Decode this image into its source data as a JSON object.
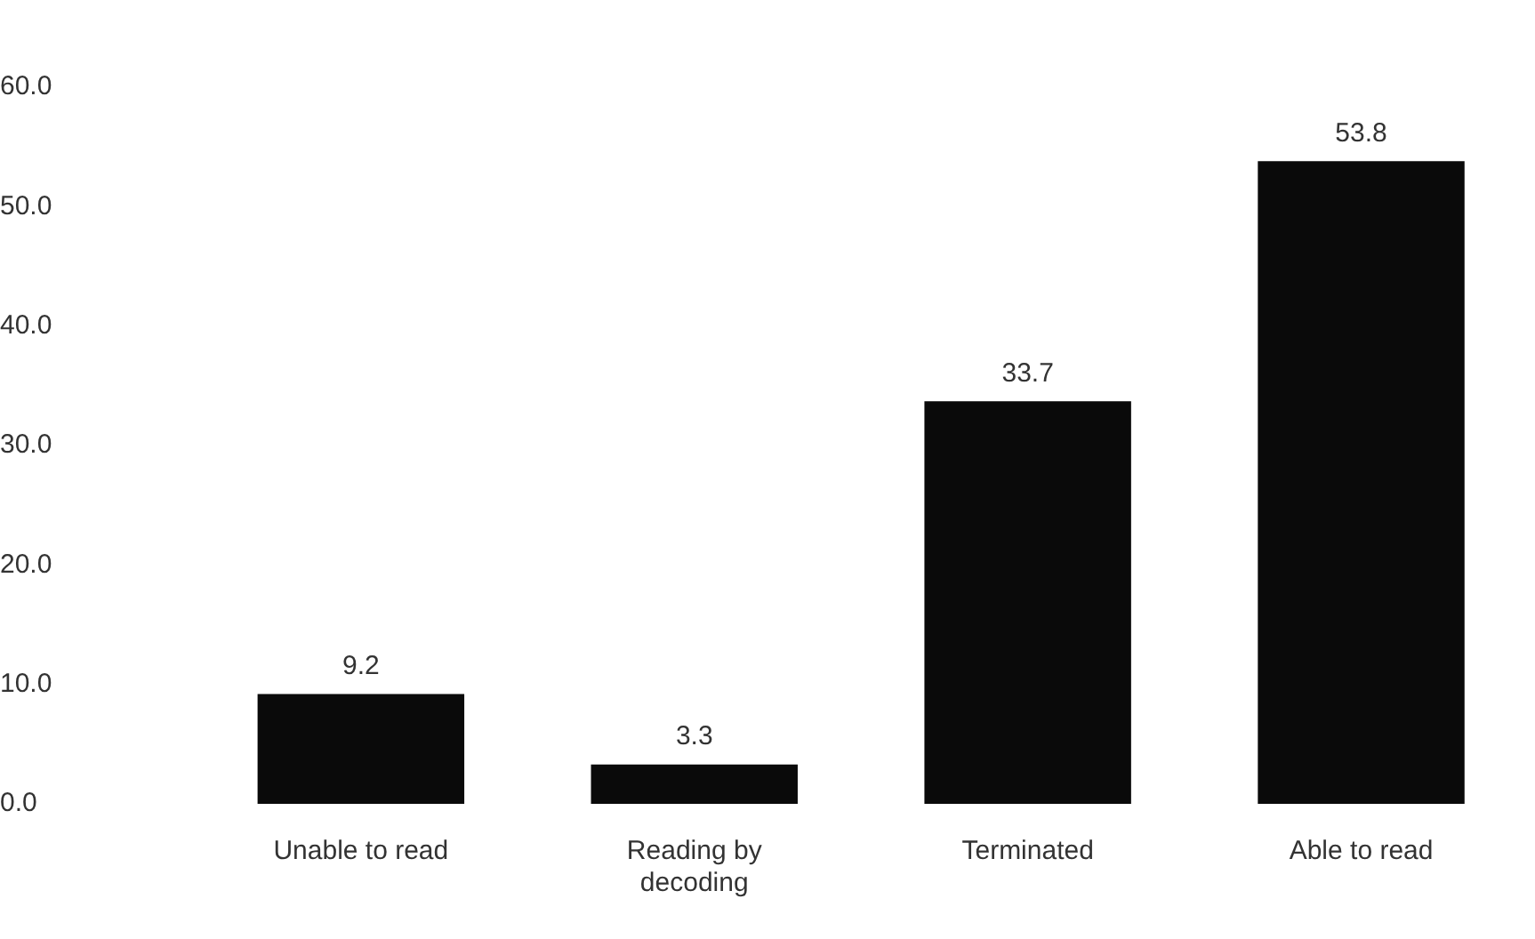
{
  "chart_data": {
    "type": "bar",
    "categories": [
      "Unable to read",
      "Reading by decoding",
      "Terminated",
      "Able to read"
    ],
    "values": [
      9.2,
      3.3,
      33.7,
      53.8
    ],
    "color": "#0a0a0a",
    "ylim": [
      0,
      60
    ],
    "yticks": [
      {
        "value": 0,
        "label": "0.0"
      },
      {
        "value": 10,
        "label": "10.0"
      },
      {
        "value": 20,
        "label": "20.0"
      },
      {
        "value": 30,
        "label": "30.0"
      },
      {
        "value": 40,
        "label": "40.0"
      },
      {
        "value": 50,
        "label": "50.0"
      },
      {
        "value": 60,
        "label": "60.0"
      }
    ],
    "data_labels": true,
    "grid": false,
    "legend": false
  }
}
